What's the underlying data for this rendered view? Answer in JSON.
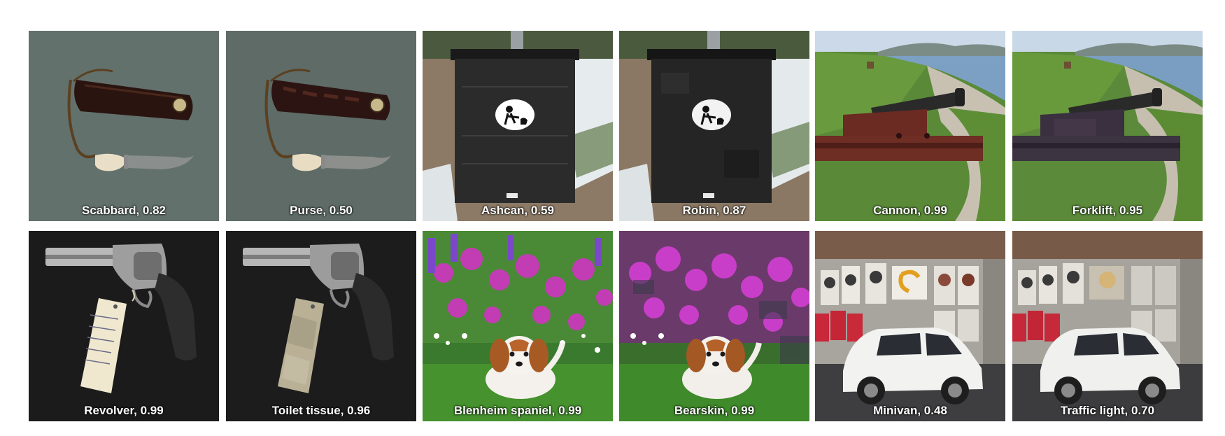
{
  "tiles": [
    {
      "label": "Scabbard, 0.82",
      "subject": "knife-in-leather-sheath"
    },
    {
      "label": "Purse, 0.50",
      "subject": "knife-in-leather-sheath-perturbed"
    },
    {
      "label": "Ashcan, 0.59",
      "subject": "dog-waste-bin"
    },
    {
      "label": "Robin, 0.87",
      "subject": "dog-waste-bin-perturbed"
    },
    {
      "label": "Cannon, 0.99",
      "subject": "cannon-by-sea"
    },
    {
      "label": "Forklift, 0.95",
      "subject": "cannon-by-sea-perturbed"
    },
    {
      "label": "Revolver, 0.99",
      "subject": "revolver-with-tag"
    },
    {
      "label": "Toilet tissue, 0.96",
      "subject": "revolver-with-tag-perturbed"
    },
    {
      "label": "Blenheim spaniel, 0.99",
      "subject": "spaniel-in-flowers"
    },
    {
      "label": "Bearskin, 0.99",
      "subject": "spaniel-in-flowers-perturbed"
    },
    {
      "label": "Minivan, 0.48",
      "subject": "white-suv-by-poster-wall"
    },
    {
      "label": "Traffic light, 0.70",
      "subject": "white-suv-by-poster-wall-perturbed"
    }
  ],
  "colors": {
    "caption_text": "#ffffff",
    "page_background": "#ffffff"
  }
}
